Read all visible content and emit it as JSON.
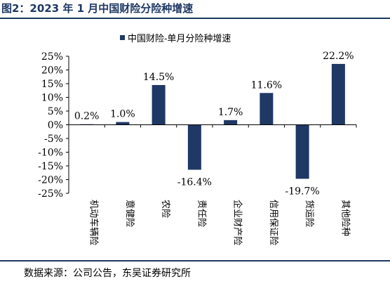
{
  "header": {
    "title": "图2：2023 年 1 月中国财险分险种增速"
  },
  "footer": {
    "source": "数据来源：公司公告，东吴证券研究所"
  },
  "colors": {
    "bar": "#1f3864",
    "rule": "#1f3864"
  },
  "chart_data": {
    "type": "bar",
    "categories": [
      "机动车辆险",
      "意健险",
      "农险",
      "责任险",
      "企业财产险",
      "信用保证险",
      "货运险",
      "其他险种"
    ],
    "series": [
      {
        "name": "中国财险-单月分险种增速",
        "values": [
          0.2,
          1.0,
          14.5,
          -16.4,
          1.7,
          11.6,
          -19.7,
          22.2
        ]
      }
    ],
    "data_labels": [
      "0.2%",
      "1.0%",
      "14.5%",
      "-16.4%",
      "1.7%",
      "11.6%",
      "-19.7%",
      "22.2%"
    ],
    "yticks": [
      "25%",
      "20%",
      "15%",
      "10%",
      "5%",
      "0%",
      "-5%",
      "-10%",
      "-15%",
      "-20%",
      "-25%"
    ],
    "ylim": [
      -25,
      25
    ],
    "ytick_step": 5,
    "legend_position": "top-center",
    "grid": false
  }
}
